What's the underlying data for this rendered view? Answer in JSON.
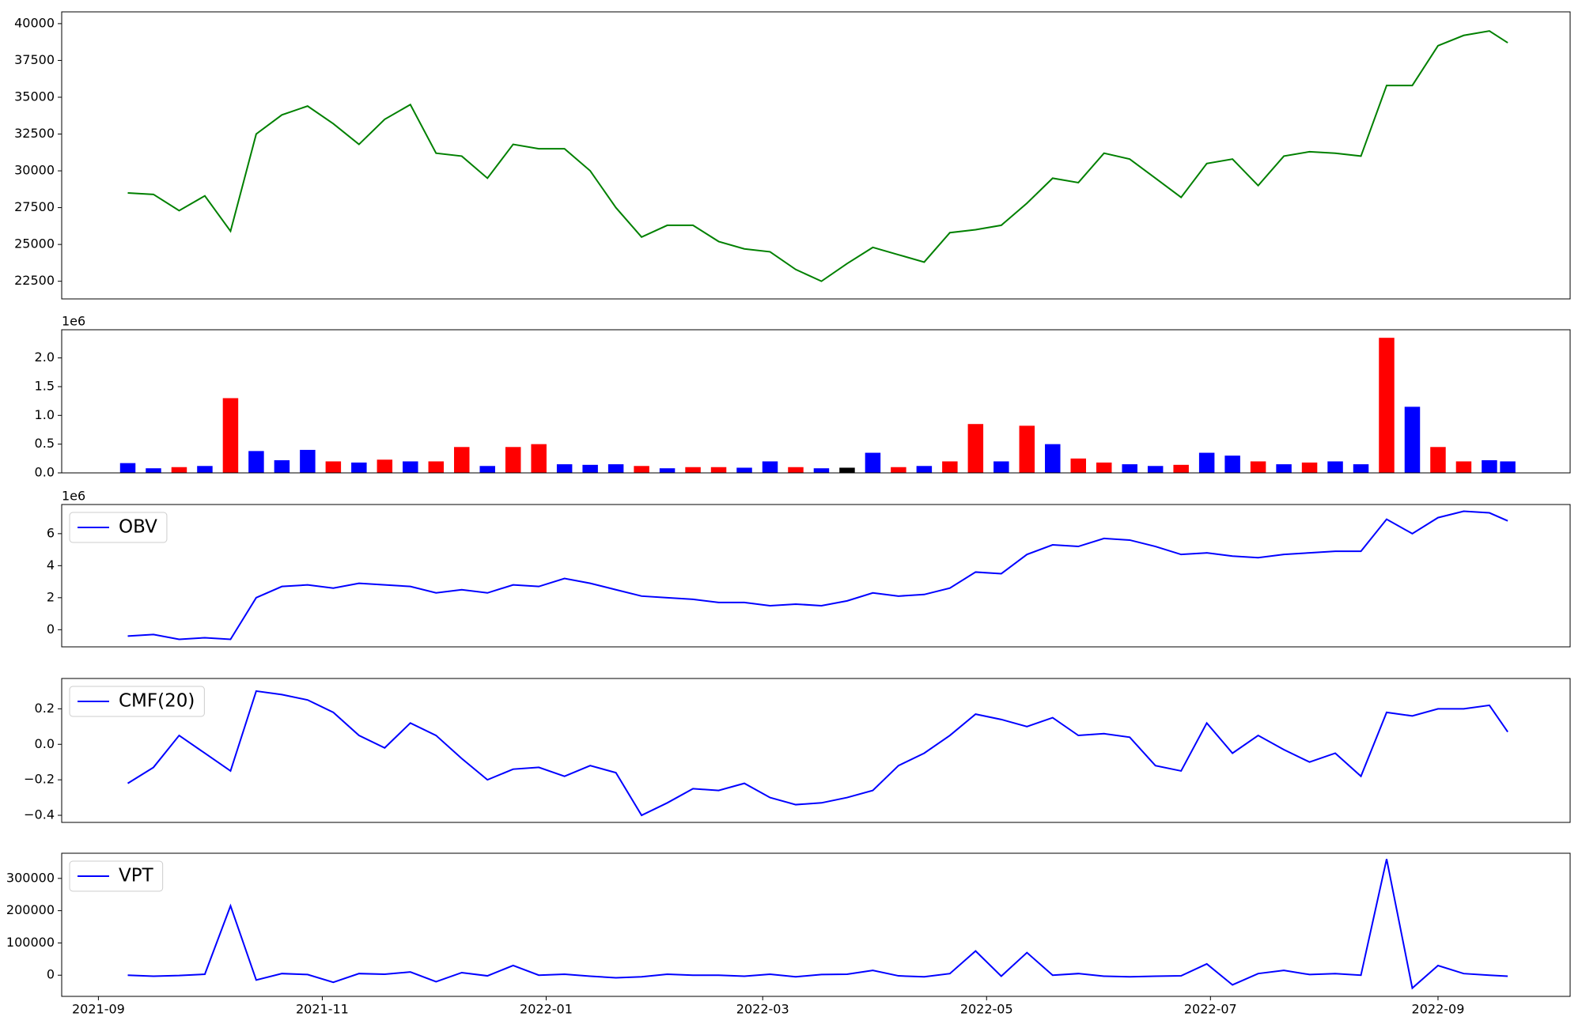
{
  "chart_data": [
    {
      "type": "line",
      "color": "#008000",
      "x": [
        "2021-09-09",
        "2021-09-16",
        "2021-09-23",
        "2021-09-30",
        "2021-10-07",
        "2021-10-14",
        "2021-10-21",
        "2021-10-28",
        "2021-11-04",
        "2021-11-11",
        "2021-11-18",
        "2021-11-25",
        "2021-12-02",
        "2021-12-09",
        "2021-12-16",
        "2021-12-23",
        "2021-12-30",
        "2022-01-06",
        "2022-01-13",
        "2022-01-20",
        "2022-01-27",
        "2022-02-03",
        "2022-02-10",
        "2022-02-17",
        "2022-02-24",
        "2022-03-03",
        "2022-03-10",
        "2022-03-17",
        "2022-03-24",
        "2022-03-31",
        "2022-04-07",
        "2022-04-14",
        "2022-04-21",
        "2022-04-28",
        "2022-05-05",
        "2022-05-12",
        "2022-05-19",
        "2022-05-26",
        "2022-06-02",
        "2022-06-09",
        "2022-06-16",
        "2022-06-23",
        "2022-06-30",
        "2022-07-07",
        "2022-07-14",
        "2022-07-21",
        "2022-07-28",
        "2022-08-04",
        "2022-08-11",
        "2022-08-18",
        "2022-08-25",
        "2022-09-01",
        "2022-09-08",
        "2022-09-15",
        "2022-09-20"
      ],
      "values": [
        28500,
        28400,
        27300,
        28300,
        25900,
        32500,
        33800,
        34400,
        33200,
        31800,
        33500,
        34500,
        31200,
        31000,
        29500,
        31800,
        31500,
        31500,
        30000,
        27500,
        25500,
        26300,
        26300,
        25200,
        24700,
        24500,
        23300,
        22500,
        23700,
        24800,
        24300,
        23800,
        25800,
        26000,
        26300,
        27800,
        29500,
        29200,
        31200,
        30800,
        29500,
        28200,
        30500,
        30800,
        29000,
        31000,
        31300,
        31200,
        31000,
        35800,
        35800,
        38500,
        39200,
        39500,
        38700
      ],
      "xlim": [
        "2021-08-22",
        "2022-10-07"
      ],
      "ylim": [
        21300,
        40800
      ],
      "yticks": [
        22500,
        25000,
        27500,
        30000,
        32500,
        35000,
        37500,
        40000
      ]
    },
    {
      "type": "bar",
      "offset_label": "1e6",
      "x": [
        "2021-09-09",
        "2021-09-16",
        "2021-09-23",
        "2021-09-30",
        "2021-10-07",
        "2021-10-14",
        "2021-10-21",
        "2021-10-28",
        "2021-11-04",
        "2021-11-11",
        "2021-11-18",
        "2021-11-25",
        "2021-12-02",
        "2021-12-09",
        "2021-12-16",
        "2021-12-23",
        "2021-12-30",
        "2022-01-06",
        "2022-01-13",
        "2022-01-20",
        "2022-01-27",
        "2022-02-03",
        "2022-02-10",
        "2022-02-17",
        "2022-02-24",
        "2022-03-03",
        "2022-03-10",
        "2022-03-17",
        "2022-03-24",
        "2022-03-31",
        "2022-04-07",
        "2022-04-14",
        "2022-04-21",
        "2022-04-28",
        "2022-05-05",
        "2022-05-12",
        "2022-05-19",
        "2022-05-26",
        "2022-06-02",
        "2022-06-09",
        "2022-06-16",
        "2022-06-23",
        "2022-06-30",
        "2022-07-07",
        "2022-07-14",
        "2022-07-21",
        "2022-07-28",
        "2022-08-04",
        "2022-08-11",
        "2022-08-18",
        "2022-08-25",
        "2022-09-01",
        "2022-09-08",
        "2022-09-15",
        "2022-09-20"
      ],
      "values": [
        0.17,
        0.08,
        0.1,
        0.12,
        1.3,
        0.38,
        0.22,
        0.4,
        0.2,
        0.18,
        0.23,
        0.2,
        0.2,
        0.45,
        0.12,
        0.45,
        0.5,
        0.15,
        0.14,
        0.15,
        0.12,
        0.08,
        0.1,
        0.1,
        0.09,
        0.2,
        0.1,
        0.08,
        0.09,
        0.35,
        0.1,
        0.12,
        0.2,
        0.85,
        0.2,
        0.82,
        0.5,
        0.25,
        0.18,
        0.15,
        0.12,
        0.14,
        0.35,
        0.3,
        0.2,
        0.15,
        0.18,
        0.2,
        0.15,
        2.35,
        1.15,
        0.45,
        0.2,
        0.22,
        0.2
      ],
      "colors": [
        "#0000ff",
        "#0000ff",
        "#ff0000",
        "#0000ff",
        "#ff0000",
        "#0000ff",
        "#0000ff",
        "#0000ff",
        "#ff0000",
        "#0000ff",
        "#ff0000",
        "#0000ff",
        "#ff0000",
        "#ff0000",
        "#0000ff",
        "#ff0000",
        "#ff0000",
        "#0000ff",
        "#0000ff",
        "#0000ff",
        "#ff0000",
        "#0000ff",
        "#ff0000",
        "#ff0000",
        "#0000ff",
        "#0000ff",
        "#ff0000",
        "#0000ff",
        "#000000",
        "#0000ff",
        "#ff0000",
        "#0000ff",
        "#ff0000",
        "#ff0000",
        "#0000ff",
        "#ff0000",
        "#0000ff",
        "#ff0000",
        "#ff0000",
        "#0000ff",
        "#0000ff",
        "#ff0000",
        "#0000ff",
        "#0000ff",
        "#ff0000",
        "#0000ff",
        "#ff0000",
        "#0000ff",
        "#0000ff",
        "#ff0000",
        "#0000ff",
        "#ff0000",
        "#ff0000",
        "#0000ff",
        "#0000ff"
      ],
      "xlim": [
        "2021-08-22",
        "2022-10-07"
      ],
      "ylim": [
        0,
        2.49
      ],
      "yticks": [
        {
          "value": 0,
          "label": "0.0"
        },
        0.5,
        {
          "value": 1,
          "label": "1.0"
        },
        1.5,
        {
          "value": 2,
          "label": "2.0"
        }
      ]
    },
    {
      "type": "line",
      "offset_label": "1e6",
      "legend": "upper left",
      "x": [
        "2021-09-09",
        "2021-09-16",
        "2021-09-23",
        "2021-09-30",
        "2021-10-07",
        "2021-10-14",
        "2021-10-21",
        "2021-10-28",
        "2021-11-04",
        "2021-11-11",
        "2021-11-18",
        "2021-11-25",
        "2021-12-02",
        "2021-12-09",
        "2021-12-16",
        "2021-12-23",
        "2021-12-30",
        "2022-01-06",
        "2022-01-13",
        "2022-01-20",
        "2022-01-27",
        "2022-02-03",
        "2022-02-10",
        "2022-02-17",
        "2022-02-24",
        "2022-03-03",
        "2022-03-10",
        "2022-03-17",
        "2022-03-24",
        "2022-03-31",
        "2022-04-07",
        "2022-04-14",
        "2022-04-21",
        "2022-04-28",
        "2022-05-05",
        "2022-05-12",
        "2022-05-19",
        "2022-05-26",
        "2022-06-02",
        "2022-06-09",
        "2022-06-16",
        "2022-06-23",
        "2022-06-30",
        "2022-07-07",
        "2022-07-14",
        "2022-07-21",
        "2022-07-28",
        "2022-08-04",
        "2022-08-11",
        "2022-08-18",
        "2022-08-25",
        "2022-09-01",
        "2022-09-08",
        "2022-09-15",
        "2022-09-20"
      ],
      "series": [
        {
          "name": "OBV",
          "color": "#0000ff",
          "values": [
            -0.4,
            -0.3,
            -0.6,
            -0.5,
            -0.6,
            2.0,
            2.7,
            2.8,
            2.6,
            2.9,
            2.8,
            2.7,
            2.3,
            2.5,
            2.3,
            2.8,
            2.7,
            3.2,
            2.9,
            2.5,
            2.1,
            2.0,
            1.9,
            1.7,
            1.7,
            1.5,
            1.6,
            1.5,
            1.8,
            2.3,
            2.1,
            2.2,
            2.6,
            3.6,
            3.5,
            4.7,
            5.3,
            5.2,
            5.7,
            5.6,
            5.2,
            4.7,
            4.8,
            4.6,
            4.5,
            4.7,
            4.8,
            4.9,
            4.9,
            6.9,
            6.0,
            7.0,
            7.4,
            7.3,
            6.8
          ]
        }
      ],
      "xlim": [
        "2021-08-22",
        "2022-10-07"
      ],
      "ylim": [
        -1.07,
        7.82
      ],
      "yticks": [
        0,
        2,
        4,
        6
      ]
    },
    {
      "type": "line",
      "legend": "upper left",
      "x": [
        "2021-09-09",
        "2021-09-16",
        "2021-09-23",
        "2021-09-30",
        "2021-10-07",
        "2021-10-14",
        "2021-10-21",
        "2021-10-28",
        "2021-11-04",
        "2021-11-11",
        "2021-11-18",
        "2021-11-25",
        "2021-12-02",
        "2021-12-09",
        "2021-12-16",
        "2021-12-23",
        "2021-12-30",
        "2022-01-06",
        "2022-01-13",
        "2022-01-20",
        "2022-01-27",
        "2022-02-03",
        "2022-02-10",
        "2022-02-17",
        "2022-02-24",
        "2022-03-03",
        "2022-03-10",
        "2022-03-17",
        "2022-03-24",
        "2022-03-31",
        "2022-04-07",
        "2022-04-14",
        "2022-04-21",
        "2022-04-28",
        "2022-05-05",
        "2022-05-12",
        "2022-05-19",
        "2022-05-26",
        "2022-06-02",
        "2022-06-09",
        "2022-06-16",
        "2022-06-23",
        "2022-06-30",
        "2022-07-07",
        "2022-07-14",
        "2022-07-21",
        "2022-07-28",
        "2022-08-04",
        "2022-08-11",
        "2022-08-18",
        "2022-08-25",
        "2022-09-01",
        "2022-09-08",
        "2022-09-15",
        "2022-09-20"
      ],
      "series": [
        {
          "name": "CMF(20)",
          "color": "#0000ff",
          "values": [
            -0.22,
            -0.13,
            0.05,
            -0.05,
            -0.15,
            0.3,
            0.28,
            0.25,
            0.18,
            0.05,
            -0.02,
            0.12,
            0.05,
            -0.08,
            -0.2,
            -0.14,
            -0.13,
            -0.18,
            -0.12,
            -0.16,
            -0.4,
            -0.33,
            -0.25,
            -0.26,
            -0.22,
            -0.3,
            -0.34,
            -0.33,
            -0.3,
            -0.26,
            -0.12,
            -0.05,
            0.05,
            0.17,
            0.14,
            0.1,
            0.15,
            0.05,
            0.06,
            0.04,
            -0.12,
            -0.15,
            0.12,
            -0.05,
            0.05,
            -0.03,
            -0.1,
            -0.05,
            -0.18,
            0.18,
            0.16,
            0.2,
            0.2,
            0.22,
            0.07
          ]
        }
      ],
      "xlim": [
        "2021-08-22",
        "2022-10-07"
      ],
      "ylim": [
        -0.44,
        0.371
      ],
      "yticks": [
        {
          "value": -0.4,
          "label": "−0.4"
        },
        {
          "value": -0.2,
          "label": "−0.2"
        },
        {
          "value": 0,
          "label": "0.0"
        },
        0.2
      ]
    },
    {
      "type": "line",
      "legend": "upper left",
      "x": [
        "2021-09-09",
        "2021-09-16",
        "2021-09-23",
        "2021-09-30",
        "2021-10-07",
        "2021-10-14",
        "2021-10-21",
        "2021-10-28",
        "2021-11-04",
        "2021-11-11",
        "2021-11-18",
        "2021-11-25",
        "2021-12-02",
        "2021-12-09",
        "2021-12-16",
        "2021-12-23",
        "2021-12-30",
        "2022-01-06",
        "2022-01-13",
        "2022-01-20",
        "2022-01-27",
        "2022-02-03",
        "2022-02-10",
        "2022-02-17",
        "2022-02-24",
        "2022-03-03",
        "2022-03-10",
        "2022-03-17",
        "2022-03-24",
        "2022-03-31",
        "2022-04-07",
        "2022-04-14",
        "2022-04-21",
        "2022-04-28",
        "2022-05-05",
        "2022-05-12",
        "2022-05-19",
        "2022-05-26",
        "2022-06-02",
        "2022-06-09",
        "2022-06-16",
        "2022-06-23",
        "2022-06-30",
        "2022-07-07",
        "2022-07-14",
        "2022-07-21",
        "2022-07-28",
        "2022-08-04",
        "2022-08-11",
        "2022-08-18",
        "2022-08-25",
        "2022-09-01",
        "2022-09-08",
        "2022-09-15",
        "2022-09-20"
      ],
      "series": [
        {
          "name": "VPT",
          "color": "#0000ff",
          "values": [
            0,
            -3000,
            -1000,
            3000,
            215000,
            -15000,
            5000,
            2000,
            -22000,
            5000,
            3000,
            10000,
            -20000,
            8000,
            -2000,
            30000,
            0,
            3000,
            -3000,
            -8000,
            -5000,
            3000,
            0,
            0,
            -3000,
            3000,
            -5000,
            2000,
            3000,
            15000,
            -2000,
            -5000,
            5000,
            75000,
            -3000,
            70000,
            0,
            5000,
            -3000,
            -5000,
            -3000,
            -2000,
            35000,
            -30000,
            5000,
            15000,
            2000,
            5000,
            0,
            360000,
            -40000,
            30000,
            5000,
            0,
            -3000
          ]
        }
      ],
      "xlim": [
        "2021-08-22",
        "2022-10-07"
      ],
      "ylim": [
        -65600,
        378000
      ],
      "yticks": [
        0,
        100000,
        200000,
        300000
      ],
      "xticks": [
        {
          "value": "2021-09-01",
          "label": "2021-09"
        },
        {
          "value": "2021-11-01",
          "label": "2021-11"
        },
        {
          "value": "2022-01-01",
          "label": "2022-01"
        },
        {
          "value": "2022-03-01",
          "label": "2022-03"
        },
        {
          "value": "2022-05-01",
          "label": "2022-05"
        },
        {
          "value": "2022-07-01",
          "label": "2022-07"
        },
        {
          "value": "2022-09-01",
          "label": "2022-09"
        }
      ]
    }
  ]
}
